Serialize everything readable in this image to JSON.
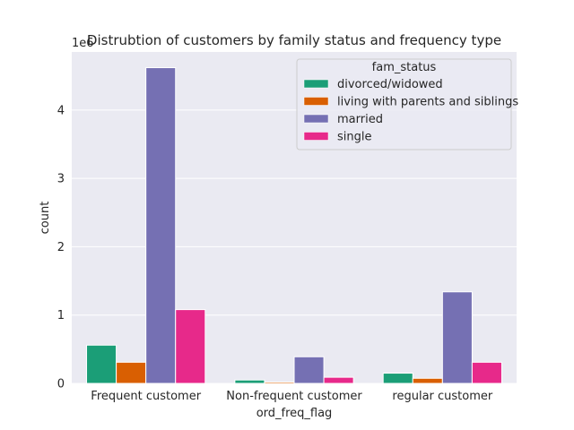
{
  "chart_data": {
    "type": "bar",
    "title": "Distrubtion of customers by family status and frequency type",
    "xlabel": "ord_freq_flag",
    "ylabel": "count",
    "y_offset_label": "1e6",
    "categories": [
      "Frequent customer",
      "Non-frequent customer",
      "regular customer"
    ],
    "series": [
      {
        "name": "divorced/widowed",
        "color": "#1b9e77",
        "values": [
          560000,
          50000,
          150000
        ]
      },
      {
        "name": "living with parents and siblings",
        "color": "#d95f02",
        "values": [
          310000,
          20000,
          75000
        ]
      },
      {
        "name": "married",
        "color": "#7570b3",
        "values": [
          4620000,
          390000,
          1340000
        ]
      },
      {
        "name": "single",
        "color": "#e7298a",
        "values": [
          1080000,
          90000,
          310000
        ]
      }
    ],
    "ylim": [
      0,
      4850000
    ],
    "yticks": [
      {
        "value": 0,
        "label": "0"
      },
      {
        "value": 1000000,
        "label": "1"
      },
      {
        "value": 2000000,
        "label": "2"
      },
      {
        "value": 3000000,
        "label": "3"
      },
      {
        "value": 4000000,
        "label": "4"
      }
    ],
    "grid": true,
    "legend_title": "fam_status",
    "legend_position": "top-right",
    "background_color": "#eaeaf2"
  }
}
